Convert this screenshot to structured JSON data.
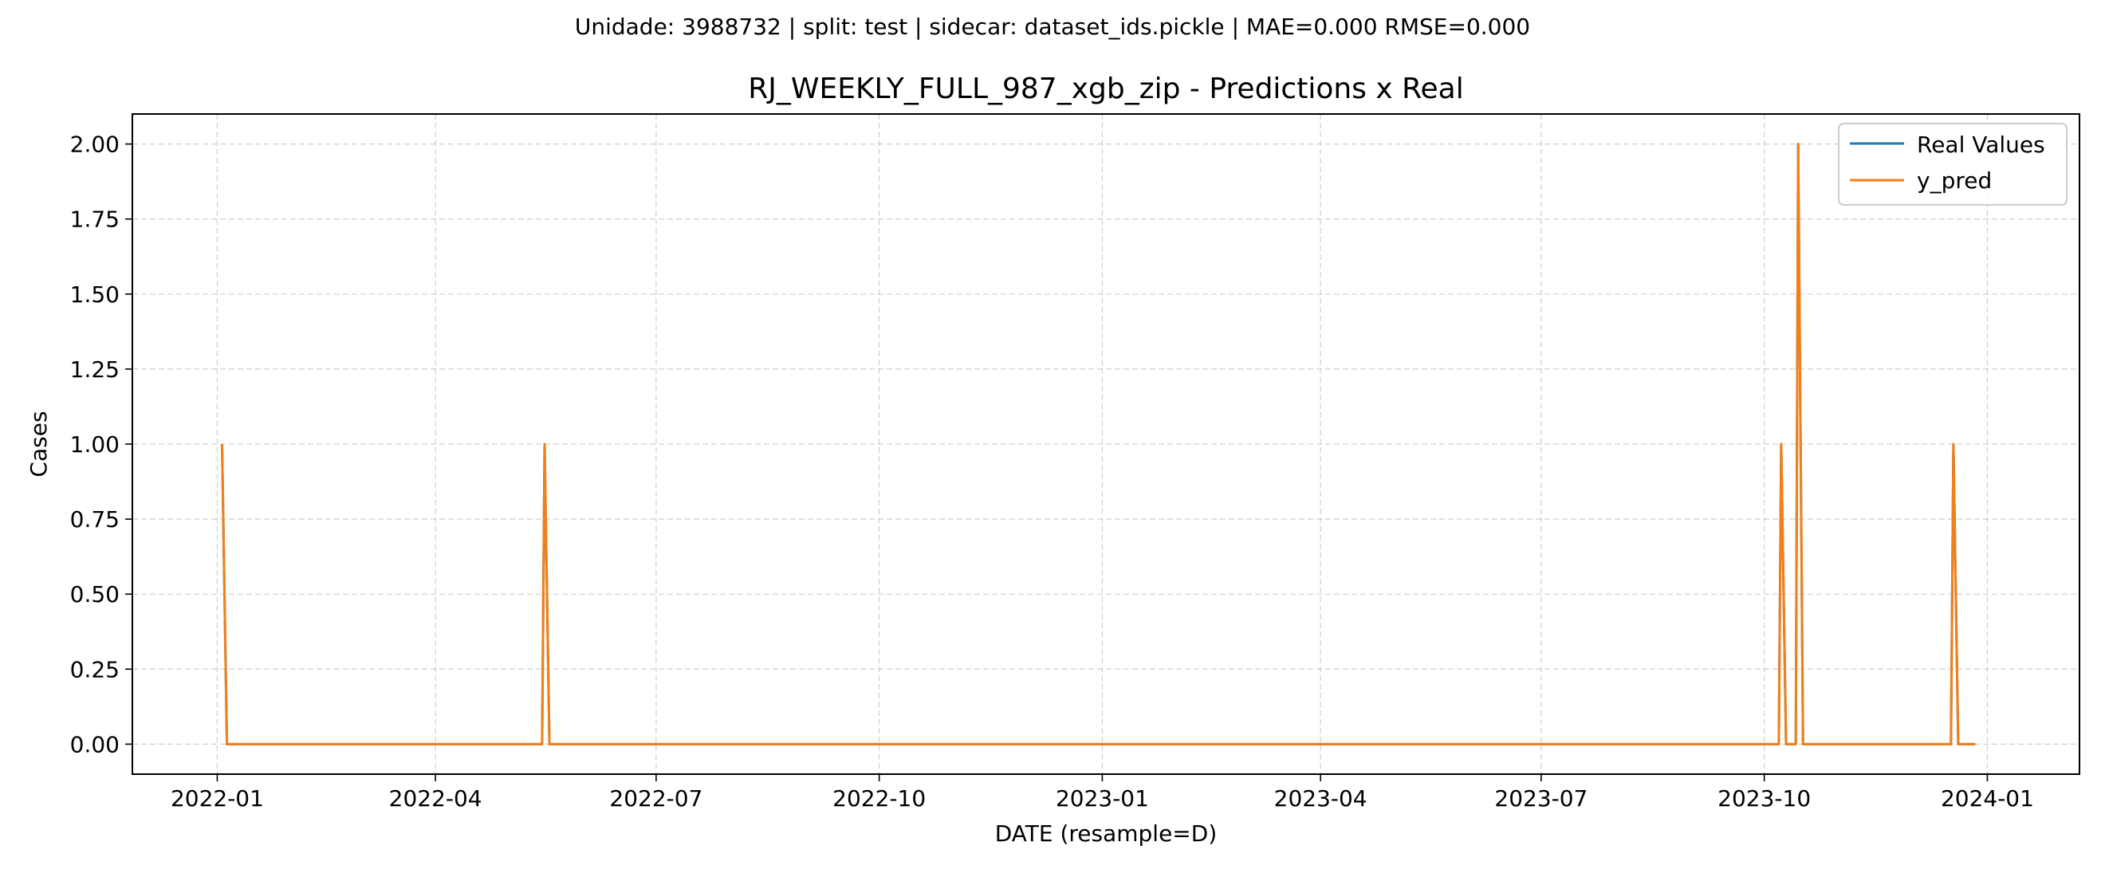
{
  "chart_data": {
    "type": "line",
    "suptitle": "Unidade: 3988732 | split: test | sidecar: dataset_ids.pickle | MAE=0.000  RMSE=0.000",
    "title": "RJ_WEEKLY_FULL_987_xgb_zip - Predictions x Real",
    "xlabel": "DATE (resample=D)",
    "ylabel": "Cases",
    "xlim": [
      "2021-11-27",
      "2024-02-08"
    ],
    "ylim": [
      -0.1,
      2.1
    ],
    "x_ticks": [
      "2022-01-01",
      "2022-04-01",
      "2022-07-01",
      "2022-10-01",
      "2023-01-01",
      "2023-04-01",
      "2023-07-01",
      "2023-10-01",
      "2024-01-01"
    ],
    "x_tick_labels": [
      "2022-01",
      "2022-04",
      "2022-07",
      "2022-10",
      "2023-01",
      "2023-04",
      "2023-07",
      "2023-10",
      "2024-01"
    ],
    "y_ticks": [
      0.0,
      0.25,
      0.5,
      0.75,
      1.0,
      1.25,
      1.5,
      1.75,
      2.0
    ],
    "y_tick_labels": [
      "0.00",
      "0.25",
      "0.50",
      "0.75",
      "1.00",
      "1.25",
      "1.50",
      "1.75",
      "2.00"
    ],
    "grid": true,
    "legend_position": "top-right",
    "series": [
      {
        "name": "Real Values",
        "color": "#1f77b4",
        "points": [
          [
            "2022-01-03",
            1
          ],
          [
            "2022-01-05",
            0
          ],
          [
            "2022-05-15",
            0
          ],
          [
            "2022-05-16",
            1
          ],
          [
            "2022-05-18",
            0
          ],
          [
            "2023-10-07",
            0
          ],
          [
            "2023-10-08",
            1
          ],
          [
            "2023-10-10",
            0
          ],
          [
            "2023-10-14",
            0
          ],
          [
            "2023-10-15",
            2
          ],
          [
            "2023-10-17",
            0
          ],
          [
            "2023-12-17",
            0
          ],
          [
            "2023-12-18",
            1
          ],
          [
            "2023-12-20",
            0
          ],
          [
            "2023-12-27",
            0
          ]
        ]
      },
      {
        "name": "y_pred",
        "color": "#ff7f0e",
        "points": [
          [
            "2022-01-03",
            1
          ],
          [
            "2022-01-05",
            0
          ],
          [
            "2022-05-15",
            0
          ],
          [
            "2022-05-16",
            1
          ],
          [
            "2022-05-18",
            0
          ],
          [
            "2023-10-07",
            0
          ],
          [
            "2023-10-08",
            1
          ],
          [
            "2023-10-10",
            0
          ],
          [
            "2023-10-14",
            0
          ],
          [
            "2023-10-15",
            2
          ],
          [
            "2023-10-17",
            0
          ],
          [
            "2023-12-17",
            0
          ],
          [
            "2023-12-18",
            1
          ],
          [
            "2023-12-20",
            0
          ],
          [
            "2023-12-27",
            0
          ]
        ]
      }
    ]
  }
}
